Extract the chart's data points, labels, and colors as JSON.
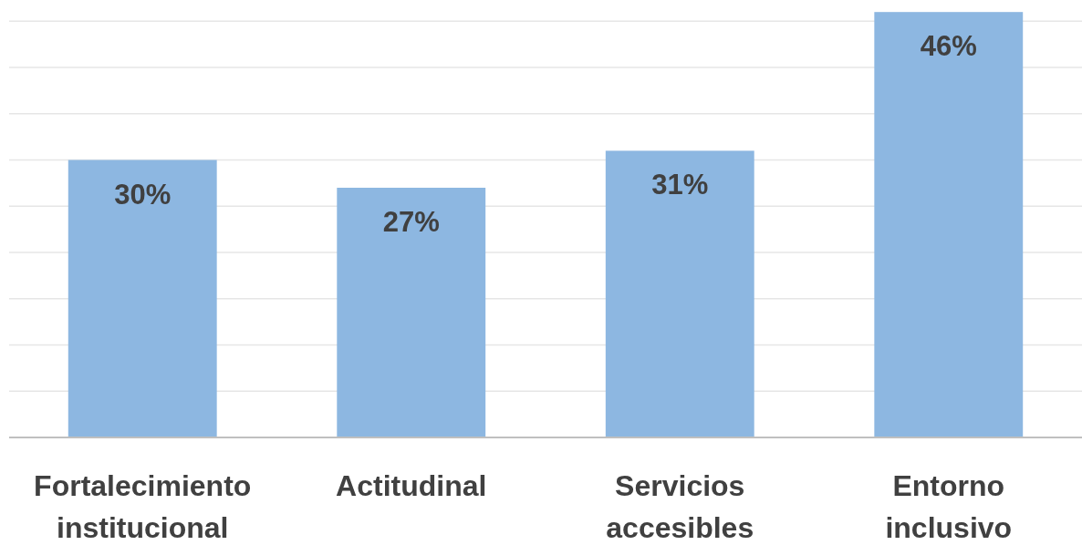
{
  "chart_data": {
    "type": "bar",
    "categories": [
      "Fortalecimiento institucional",
      "Actitudinal",
      "Servicios accesibles",
      "Entorno inclusivo"
    ],
    "values": [
      30,
      27,
      31,
      46
    ],
    "value_labels": [
      "30%",
      "27%",
      "31%",
      "46%"
    ],
    "color": "#8db7e1",
    "ylim": [
      0,
      47.3
    ],
    "yticks": [
      {
        "value": 0,
        "label": null
      },
      {
        "value": 5,
        "label": null
      },
      {
        "value": 10,
        "label": null
      },
      {
        "value": 15,
        "label": null
      },
      {
        "value": 20,
        "label": null
      },
      {
        "value": 25,
        "label": null
      },
      {
        "value": 30,
        "label": null
      },
      {
        "value": 35,
        "label": null
      },
      {
        "value": 40,
        "label": null
      },
      {
        "value": 45,
        "label": null
      }
    ],
    "grid": "y",
    "tick_labels": "x"
  }
}
